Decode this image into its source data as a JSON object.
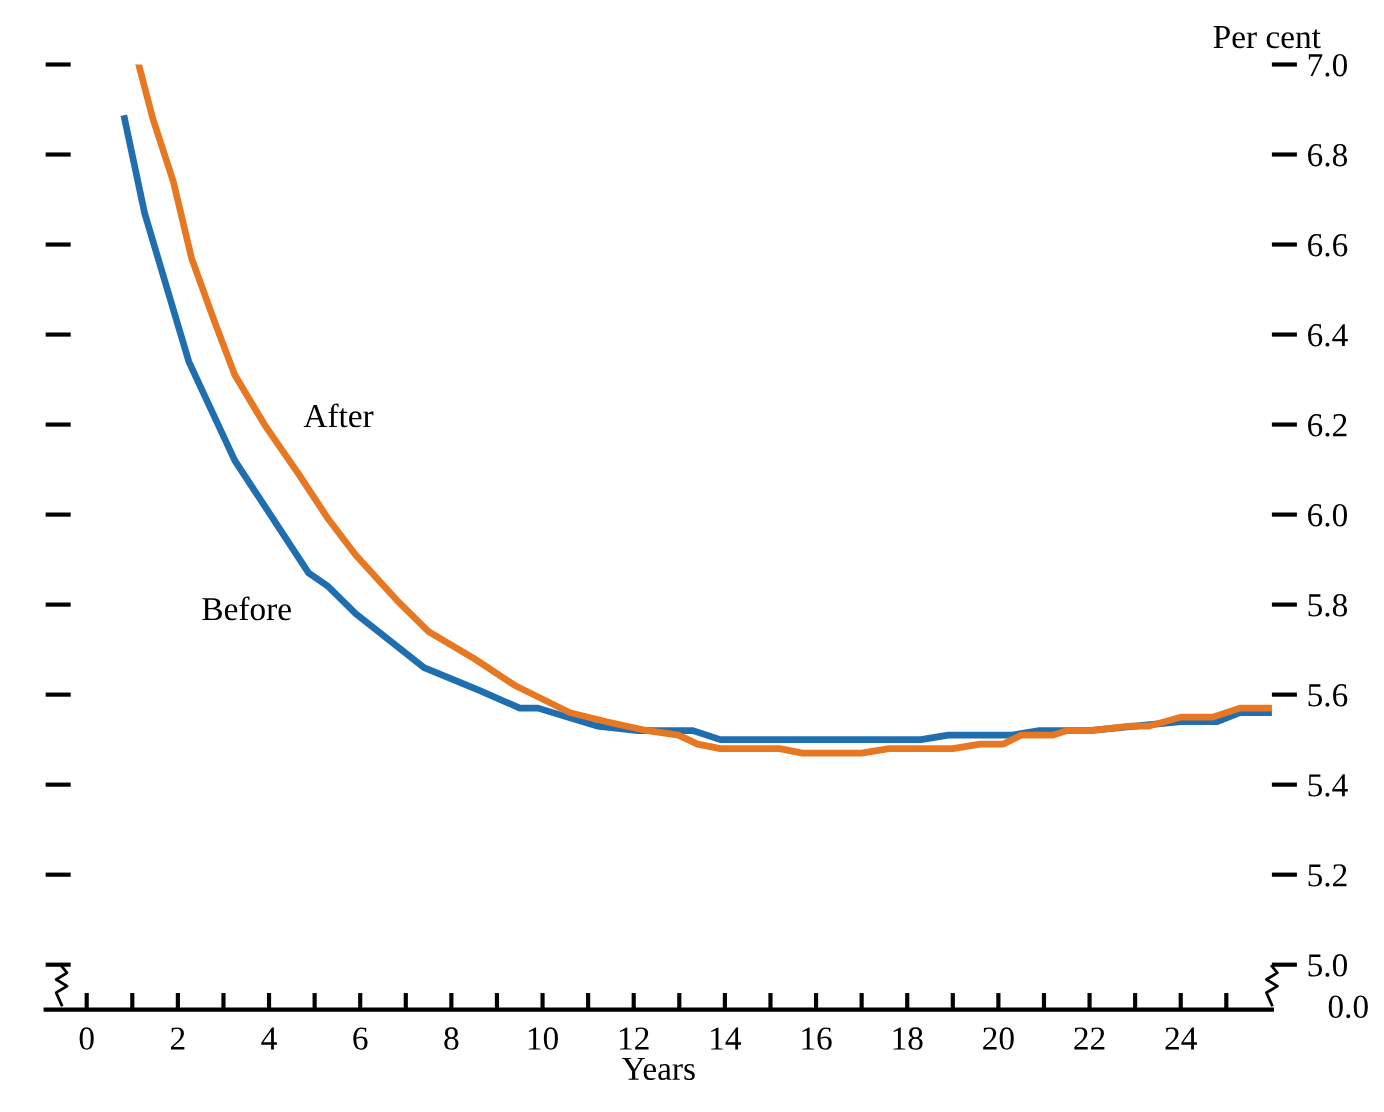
{
  "chart_data": {
    "type": "line",
    "xlabel": "Years",
    "y2label": "Per cent",
    "xlim": [
      -0.9,
      26.0
    ],
    "xticks": [
      0,
      {
        "value": 1,
        "label": null
      },
      2,
      {
        "value": 3,
        "label": null
      },
      4,
      {
        "value": 5,
        "label": null
      },
      6,
      {
        "value": 7,
        "label": null
      },
      8,
      {
        "value": 9,
        "label": null
      },
      10,
      {
        "value": 11,
        "label": null
      },
      12,
      {
        "value": 13,
        "label": null
      },
      14,
      {
        "value": 15,
        "label": null
      },
      16,
      {
        "value": 17,
        "label": null
      },
      18,
      {
        "value": 19,
        "label": null
      },
      20,
      {
        "value": 21,
        "label": null
      },
      22,
      {
        "value": 23,
        "label": null
      },
      24,
      {
        "value": 25,
        "label": null
      }
    ],
    "annotations": [
      "0.0"
    ],
    "y2lim": [
      4.9,
      7.0
    ],
    "y2ticks": [
      {
        "value": 5.0,
        "label": "5.0"
      },
      5.2,
      5.4,
      5.6,
      5.8,
      {
        "value": 6.0,
        "label": "6.0"
      },
      6.2,
      6.4,
      6.6,
      6.8,
      {
        "value": 7.0,
        "label": "7.0"
      }
    ],
    "grid": false,
    "legend": false,
    "marker": "none",
    "line_style": "solid",
    "series": [
      {
        "name": "Before",
        "axis": "y2",
        "color": "#1f6fb0",
        "x": [
          0.83,
          1.27,
          2.24,
          3.25,
          4.87,
          5.3,
          5.9,
          7.4,
          8.6,
          9.5,
          9.9,
          11.2,
          12.1,
          13.3,
          13.9,
          18.3,
          18.9,
          20.3,
          20.9,
          22.0,
          23.0,
          24.0,
          24.8,
          25.3,
          26.0
        ],
        "values": [
          6.88,
          6.67,
          6.34,
          6.12,
          5.87,
          5.84,
          5.78,
          5.66,
          5.61,
          5.57,
          5.57,
          5.53,
          5.52,
          5.52,
          5.5,
          5.5,
          5.51,
          5.51,
          5.52,
          5.52,
          5.53,
          5.54,
          5.54,
          5.56,
          5.56
        ]
      },
      {
        "name": "After",
        "axis": "y2",
        "color": "#e87722",
        "x": [
          1.14,
          1.45,
          1.9,
          2.3,
          2.8,
          3.25,
          3.9,
          4.65,
          5.3,
          5.9,
          6.8,
          7.5,
          8.5,
          8.8,
          9.4,
          9.8,
          10.6,
          11.4,
          12.3,
          12.98,
          13.4,
          13.9,
          15.2,
          15.7,
          17.0,
          17.6,
          19.0,
          19.6,
          20.1,
          20.5,
          21.2,
          21.5,
          22.0,
          22.9,
          23.3,
          24.0,
          24.7,
          25.3,
          26.0
        ],
        "values": [
          7.0,
          6.88,
          6.74,
          6.57,
          6.43,
          6.31,
          6.2,
          6.09,
          5.99,
          5.91,
          5.81,
          5.74,
          5.68,
          5.66,
          5.62,
          5.6,
          5.56,
          5.54,
          5.52,
          5.51,
          5.49,
          5.48,
          5.48,
          5.47,
          5.47,
          5.48,
          5.48,
          5.49,
          5.49,
          5.51,
          5.51,
          5.52,
          5.52,
          5.53,
          5.53,
          5.55,
          5.55,
          5.57,
          5.57
        ]
      }
    ]
  }
}
